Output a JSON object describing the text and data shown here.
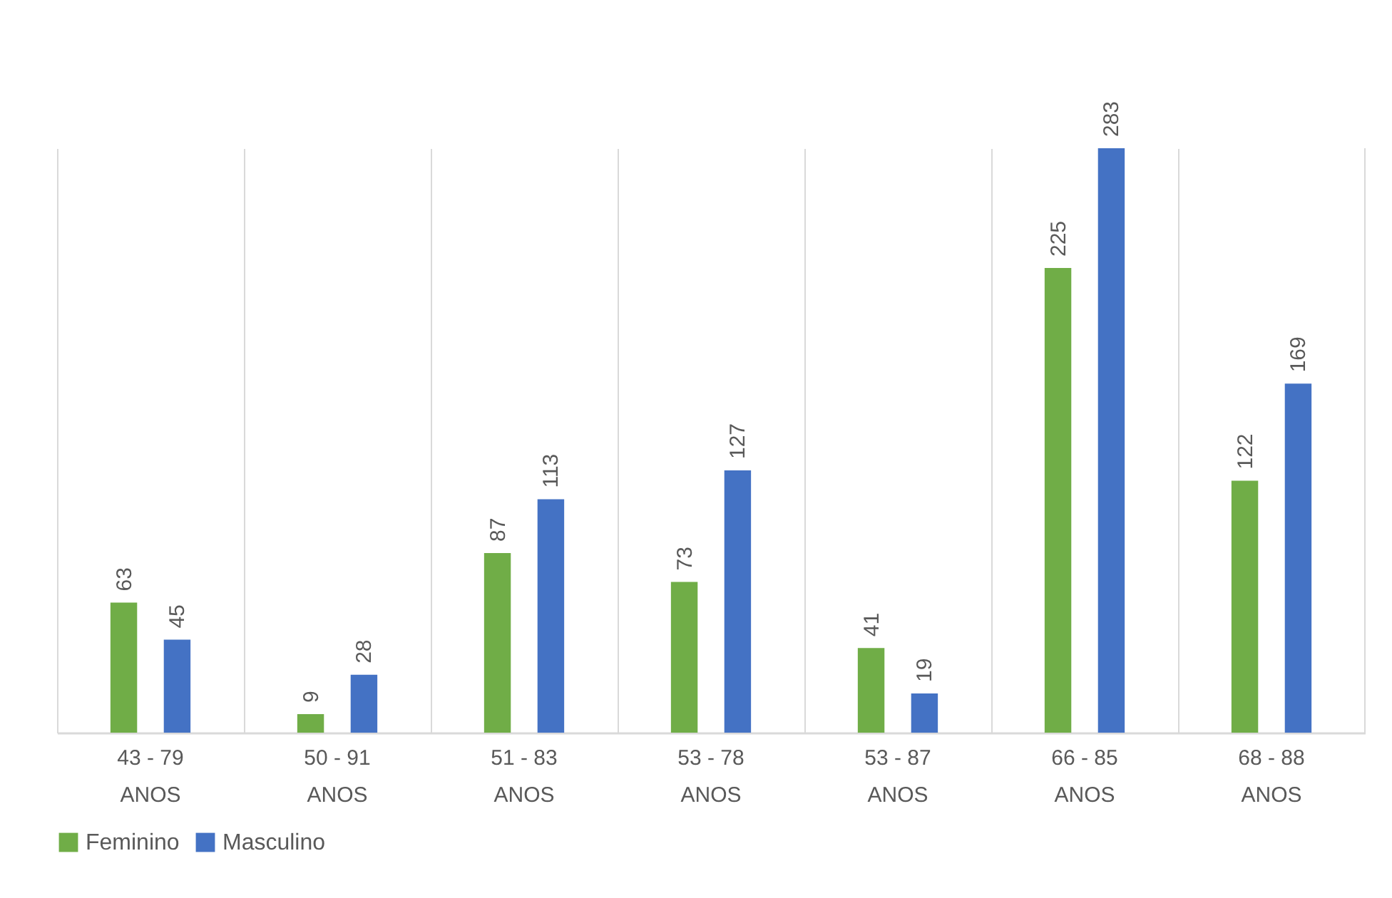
{
  "chart_data": {
    "type": "bar",
    "categories": [
      "43 - 79 ANOS",
      "50 - 91 ANOS",
      "51 - 83 ANOS",
      "53 - 78 ANOS",
      "53 - 87 ANOS",
      "66 - 85 ANOS",
      "68 - 88 ANOS"
    ],
    "series": [
      {
        "name": "Feminino",
        "color": "#70ad47",
        "values": [
          63,
          9,
          87,
          73,
          41,
          225,
          122
        ]
      },
      {
        "name": "Masculino",
        "color": "#4472c4",
        "values": [
          45,
          28,
          113,
          127,
          19,
          283,
          169
        ]
      }
    ],
    "data_labels": true,
    "grid": "x",
    "legend": "bottom"
  }
}
